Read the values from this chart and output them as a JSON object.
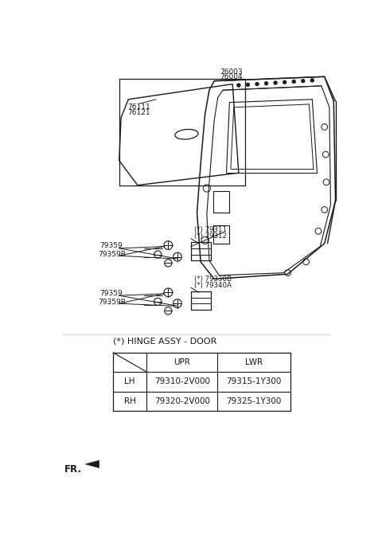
{
  "bg_color": "#ffffff",
  "line_color": "#1a1a1a",
  "table_title": "(*) HINGE ASSY - DOOR",
  "table_rows": [
    [
      "LH",
      "79310-2V000",
      "79315-1Y300"
    ],
    [
      "RH",
      "79320-2V000",
      "79325-1Y300"
    ]
  ],
  "fr_label": "FR."
}
